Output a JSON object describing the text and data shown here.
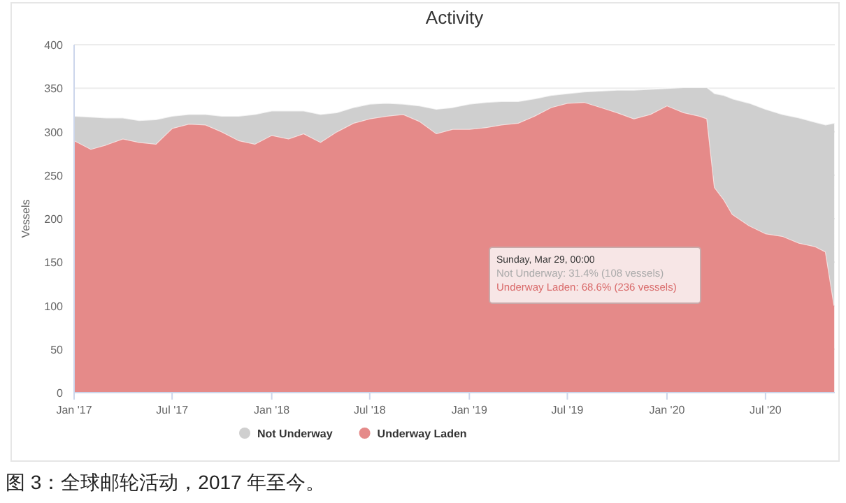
{
  "chart_data": {
    "type": "area",
    "title": "Activity",
    "ylabel": "Vessels",
    "stacked": true,
    "grid": "y",
    "legend": "bottom",
    "x": [
      "2017-01-01",
      "2017-02-01",
      "2017-03-01",
      "2017-04-01",
      "2017-05-01",
      "2017-06-01",
      "2017-07-01",
      "2017-08-01",
      "2017-09-01",
      "2017-10-01",
      "2017-11-01",
      "2017-12-01",
      "2018-01-01",
      "2018-02-01",
      "2018-03-01",
      "2018-04-01",
      "2018-05-01",
      "2018-06-01",
      "2018-07-01",
      "2018-08-01",
      "2018-09-01",
      "2018-10-01",
      "2018-11-01",
      "2018-12-01",
      "2019-01-01",
      "2019-02-01",
      "2019-03-01",
      "2019-04-01",
      "2019-05-01",
      "2019-06-01",
      "2019-07-01",
      "2019-08-01",
      "2019-09-01",
      "2019-10-01",
      "2019-11-01",
      "2019-12-01",
      "2020-01-01",
      "2020-02-01",
      "2020-03-01",
      "2020-03-15",
      "2020-03-29",
      "2020-04-15",
      "2020-05-01",
      "2020-06-01",
      "2020-07-01",
      "2020-08-01",
      "2020-09-01",
      "2020-10-01",
      "2020-10-20",
      "2020-11-05"
    ],
    "series": [
      {
        "name": "Underway Laden",
        "color": "#e58a89",
        "values": [
          290,
          280,
          285,
          292,
          288,
          286,
          304,
          309,
          308,
          300,
          290,
          286,
          296,
          292,
          298,
          288,
          300,
          310,
          315,
          318,
          320,
          312,
          298,
          303,
          303,
          305,
          308,
          310,
          318,
          328,
          333,
          334,
          328,
          322,
          315,
          320,
          330,
          322,
          318,
          315,
          236,
          222,
          205,
          192,
          183,
          180,
          172,
          168,
          162,
          100
        ]
      },
      {
        "name": "Not Underway",
        "color": "#cfcfcf",
        "values": [
          28,
          37,
          31,
          24,
          25,
          28,
          14,
          11,
          12,
          18,
          28,
          34,
          28,
          32,
          26,
          32,
          22,
          18,
          17,
          15,
          12,
          18,
          28,
          25,
          29,
          29,
          27,
          25,
          20,
          14,
          11,
          12,
          19,
          26,
          33,
          29,
          20,
          29,
          33,
          36,
          108,
          120,
          133,
          141,
          143,
          140,
          144,
          143,
          146,
          210
        ]
      }
    ],
    "xlim": [
      "2017-01-01",
      "2020-11-06"
    ],
    "xticks": [
      {
        "value": "2017-01-01",
        "label": "Jan '17"
      },
      {
        "value": "2017-07-01",
        "label": "Jul '17"
      },
      {
        "value": "2018-01-01",
        "label": "Jan '18"
      },
      {
        "value": "2018-07-01",
        "label": "Jul '18"
      },
      {
        "value": "2019-01-01",
        "label": "Jan '19"
      },
      {
        "value": "2019-07-01",
        "label": "Jul '19"
      },
      {
        "value": "2020-01-01",
        "label": "Jan '20"
      },
      {
        "value": "2020-07-01",
        "label": "Jul '20"
      }
    ],
    "ylim": [
      0,
      400
    ],
    "yticks": [
      0,
      50,
      100,
      150,
      200,
      250,
      300,
      350,
      400
    ],
    "annotations": [
      "Sunday, Mar 29, 00:00",
      "Not Underway: 31.4% (108 vessels)",
      "Underway Laden: 68.6% (236 vessels)",
      "图 3：全球邮轮活动，2017 年至今。"
    ]
  }
}
